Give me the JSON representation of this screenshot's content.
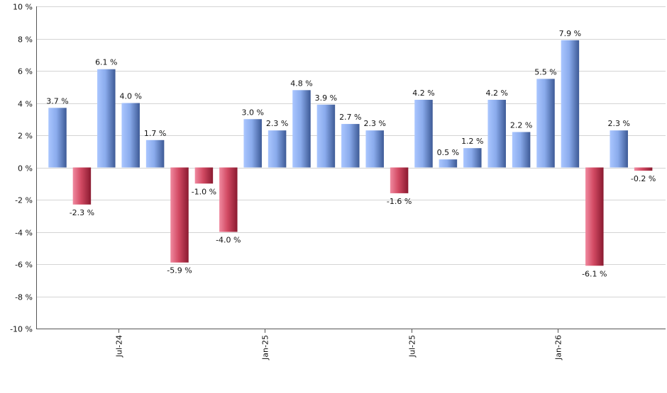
{
  "chart_data": {
    "type": "bar",
    "title": "",
    "xlabel": "",
    "ylabel": "",
    "ylim": [
      -10,
      10
    ],
    "y_ticks": [
      -10,
      -8,
      -6,
      -4,
      -2,
      0,
      2,
      4,
      6,
      8,
      10
    ],
    "y_tick_labels": [
      "-10 %",
      "-8 %",
      "-6 %",
      "-4 %",
      "-2 %",
      "0 %",
      "2 %",
      "4 %",
      "6 %",
      "8 %",
      "10 %"
    ],
    "value_suffix": " %",
    "grid": true,
    "legend": "none",
    "x_tick_labels": [
      {
        "after_index": 2,
        "label": "Jul-24"
      },
      {
        "after_index": 8,
        "label": "Jan-25"
      },
      {
        "after_index": 14,
        "label": "Jul-25"
      },
      {
        "after_index": 20,
        "label": "Jan-26"
      }
    ],
    "values": [
      3.7,
      -2.3,
      6.1,
      4.0,
      1.7,
      -5.9,
      -1.0,
      -4.0,
      3.0,
      2.3,
      4.8,
      3.9,
      2.7,
      2.3,
      -1.6,
      4.2,
      0.5,
      1.2,
      4.2,
      2.2,
      5.5,
      7.9,
      -6.1,
      2.3,
      -0.2
    ],
    "data_labels": [
      "3.7 %",
      "-2.3 %",
      "6.1 %",
      "4.0 %",
      "1.7 %",
      "-5.9 %",
      "-1.0 %",
      "-4.0 %",
      "3.0 %",
      "2.3 %",
      "4.8 %",
      "3.9 %",
      "2.7 %",
      "2.3 %",
      "-1.6 %",
      "4.2 %",
      "0.5 %",
      "1.2 %",
      "4.2 %",
      "2.2 %",
      "5.5 %",
      "7.9 %",
      "-6.1 %",
      "2.3 %",
      "-0.2 %"
    ],
    "colors": {
      "positive_light": "#aac6ff",
      "positive_dark": "#3d5a96",
      "negative_light": "#e8687e",
      "negative_dark": "#8a1a30",
      "grid": "#d4d4d4",
      "axis": "#555555"
    }
  }
}
